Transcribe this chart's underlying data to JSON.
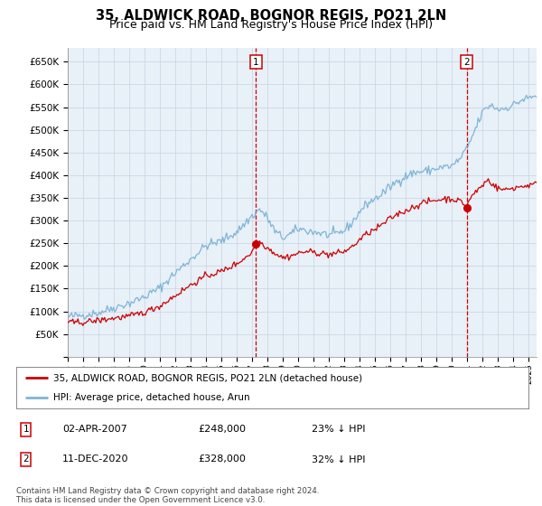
{
  "title": "35, ALDWICK ROAD, BOGNOR REGIS, PO21 2LN",
  "subtitle": "Price paid vs. HM Land Registry's House Price Index (HPI)",
  "ylim": [
    0,
    680000
  ],
  "yticks": [
    0,
    50000,
    100000,
    150000,
    200000,
    250000,
    300000,
    350000,
    400000,
    450000,
    500000,
    550000,
    600000,
    650000
  ],
  "xlim_start": 1995.0,
  "xlim_end": 2025.5,
  "bg_color": "#e8f0f8",
  "grid_color": "#c8d4e0",
  "hpi_color": "#7eb5d6",
  "price_color": "#cc0000",
  "marker1_date": 2007.25,
  "marker1_price": 248000,
  "marker2_date": 2020.95,
  "marker2_price": 328000,
  "legend_label1": "35, ALDWICK ROAD, BOGNOR REGIS, PO21 2LN (detached house)",
  "legend_label2": "HPI: Average price, detached house, Arun",
  "ann1_label": "1",
  "ann2_label": "2",
  "ann1_text": "02-APR-2007",
  "ann1_price": "£248,000",
  "ann1_hpi": "23% ↓ HPI",
  "ann2_text": "11-DEC-2020",
  "ann2_price": "£328,000",
  "ann2_hpi": "32% ↓ HPI",
  "footer": "Contains HM Land Registry data © Crown copyright and database right 2024.\nThis data is licensed under the Open Government Licence v3.0.",
  "title_fontsize": 10.5,
  "subtitle_fontsize": 9,
  "hpi_base": [
    [
      1995.0,
      88000
    ],
    [
      1996.0,
      92000
    ],
    [
      1997.0,
      97000
    ],
    [
      1998.0,
      108000
    ],
    [
      1999.0,
      118000
    ],
    [
      2000.0,
      132000
    ],
    [
      2001.0,
      152000
    ],
    [
      2002.0,
      185000
    ],
    [
      2003.0,
      215000
    ],
    [
      2004.0,
      245000
    ],
    [
      2005.0,
      255000
    ],
    [
      2006.0,
      275000
    ],
    [
      2007.0,
      310000
    ],
    [
      2007.5,
      325000
    ],
    [
      2008.0,
      305000
    ],
    [
      2008.5,
      275000
    ],
    [
      2009.0,
      262000
    ],
    [
      2009.5,
      270000
    ],
    [
      2010.0,
      282000
    ],
    [
      2010.5,
      278000
    ],
    [
      2011.0,
      275000
    ],
    [
      2011.5,
      272000
    ],
    [
      2012.0,
      268000
    ],
    [
      2012.5,
      270000
    ],
    [
      2013.0,
      278000
    ],
    [
      2013.5,
      295000
    ],
    [
      2014.0,
      320000
    ],
    [
      2014.5,
      338000
    ],
    [
      2015.0,
      348000
    ],
    [
      2015.5,
      360000
    ],
    [
      2016.0,
      375000
    ],
    [
      2016.5,
      388000
    ],
    [
      2017.0,
      398000
    ],
    [
      2017.5,
      405000
    ],
    [
      2018.0,
      408000
    ],
    [
      2018.5,
      410000
    ],
    [
      2019.0,
      415000
    ],
    [
      2019.5,
      418000
    ],
    [
      2020.0,
      420000
    ],
    [
      2020.5,
      435000
    ],
    [
      2021.0,
      460000
    ],
    [
      2021.5,
      500000
    ],
    [
      2022.0,
      540000
    ],
    [
      2022.5,
      555000
    ],
    [
      2023.0,
      545000
    ],
    [
      2023.5,
      548000
    ],
    [
      2024.0,
      555000
    ],
    [
      2024.5,
      565000
    ],
    [
      2025.0,
      570000
    ],
    [
      2025.5,
      575000
    ]
  ],
  "price_base": [
    [
      1995.0,
      75000
    ],
    [
      1996.0,
      76000
    ],
    [
      1997.0,
      80000
    ],
    [
      1998.0,
      85000
    ],
    [
      1999.0,
      89000
    ],
    [
      2000.0,
      98000
    ],
    [
      2001.0,
      112000
    ],
    [
      2002.0,
      135000
    ],
    [
      2003.0,
      158000
    ],
    [
      2004.0,
      178000
    ],
    [
      2005.0,
      188000
    ],
    [
      2006.0,
      205000
    ],
    [
      2007.0,
      230000
    ],
    [
      2007.2,
      248000
    ],
    [
      2007.4,
      255000
    ],
    [
      2007.7,
      248000
    ],
    [
      2008.0,
      240000
    ],
    [
      2008.5,
      228000
    ],
    [
      2009.0,
      218000
    ],
    [
      2009.5,
      222000
    ],
    [
      2010.0,
      228000
    ],
    [
      2010.5,
      232000
    ],
    [
      2011.0,
      230000
    ],
    [
      2011.5,
      228000
    ],
    [
      2012.0,
      225000
    ],
    [
      2012.5,
      228000
    ],
    [
      2013.0,
      232000
    ],
    [
      2013.5,
      242000
    ],
    [
      2014.0,
      258000
    ],
    [
      2014.5,
      272000
    ],
    [
      2015.0,
      280000
    ],
    [
      2015.5,
      292000
    ],
    [
      2016.0,
      305000
    ],
    [
      2016.5,
      315000
    ],
    [
      2017.0,
      322000
    ],
    [
      2017.5,
      330000
    ],
    [
      2018.0,
      338000
    ],
    [
      2018.5,
      342000
    ],
    [
      2019.0,
      345000
    ],
    [
      2019.5,
      348000
    ],
    [
      2020.0,
      348000
    ],
    [
      2020.7,
      340000
    ],
    [
      2020.95,
      328000
    ],
    [
      2021.1,
      345000
    ],
    [
      2021.5,
      362000
    ],
    [
      2022.0,
      378000
    ],
    [
      2022.3,
      390000
    ],
    [
      2022.5,
      385000
    ],
    [
      2023.0,
      370000
    ],
    [
      2023.5,
      368000
    ],
    [
      2024.0,
      372000
    ],
    [
      2024.5,
      375000
    ],
    [
      2025.0,
      378000
    ],
    [
      2025.5,
      380000
    ]
  ]
}
